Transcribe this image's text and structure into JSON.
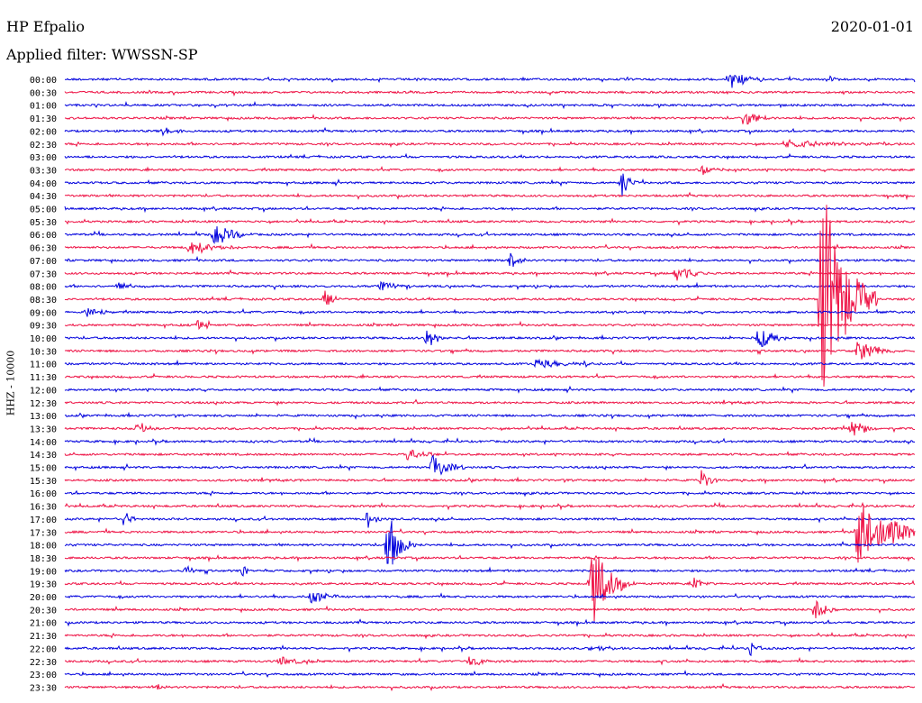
{
  "header": {
    "station": "HP Efpalio",
    "date": "2020-01-01",
    "filter": "Applied filter: WWSSN-SP"
  },
  "chart_data": {
    "type": "line",
    "ylabel": "HHZ - 10000",
    "colors": {
      "even": "#0000dd",
      "odd": "#ee1144"
    },
    "rows": [
      "00:00",
      "00:30",
      "01:00",
      "01:30",
      "02:00",
      "02:30",
      "03:00",
      "03:30",
      "04:00",
      "04:30",
      "05:00",
      "05:30",
      "06:00",
      "06:30",
      "07:00",
      "07:30",
      "08:00",
      "08:30",
      "09:00",
      "09:30",
      "10:00",
      "10:30",
      "11:00",
      "11:30",
      "12:00",
      "12:30",
      "13:00",
      "13:30",
      "14:00",
      "14:30",
      "15:00",
      "15:30",
      "16:00",
      "16:30",
      "17:00",
      "17:30",
      "18:00",
      "18:30",
      "19:00",
      "19:30",
      "20:00",
      "20:30",
      "21:00",
      "21:30",
      "22:00",
      "22:30",
      "23:00",
      "23:30"
    ],
    "events": [
      {
        "row": "00:00",
        "minute": 23.5,
        "amp": 10,
        "dur": 1.5
      },
      {
        "row": "00:00",
        "minute": 27,
        "amp": 5,
        "dur": 0.5
      },
      {
        "row": "01:30",
        "minute": 24,
        "amp": 12,
        "dur": 1.2
      },
      {
        "row": "02:00",
        "minute": 3.5,
        "amp": 5,
        "dur": 1
      },
      {
        "row": "02:30",
        "minute": 25.5,
        "amp": 4,
        "dur": 5
      },
      {
        "row": "03:30",
        "minute": 22.5,
        "amp": 7,
        "dur": 1
      },
      {
        "row": "04:00",
        "minute": 19.7,
        "amp": 18,
        "dur": 0.6
      },
      {
        "row": "06:00",
        "minute": 5.3,
        "amp": 16,
        "dur": 1.4
      },
      {
        "row": "06:30",
        "minute": 4.4,
        "amp": 9,
        "dur": 2
      },
      {
        "row": "07:00",
        "minute": 15.7,
        "amp": 12,
        "dur": 0.8
      },
      {
        "row": "07:30",
        "minute": 21.6,
        "amp": 10,
        "dur": 1.5
      },
      {
        "row": "08:00",
        "minute": 1.9,
        "amp": 8,
        "dur": 0.6
      },
      {
        "row": "08:00",
        "minute": 11.2,
        "amp": 8,
        "dur": 1
      },
      {
        "row": "08:30",
        "minute": 9.2,
        "amp": 12,
        "dur": 0.8
      },
      {
        "row": "08:30",
        "minute": 26.7,
        "amp": 140,
        "dur": 2
      },
      {
        "row": "09:00",
        "minute": 0.8,
        "amp": 6,
        "dur": 1
      },
      {
        "row": "09:30",
        "minute": 4.7,
        "amp": 8,
        "dur": 0.6
      },
      {
        "row": "10:00",
        "minute": 12.8,
        "amp": 12,
        "dur": 0.8
      },
      {
        "row": "10:00",
        "minute": 24.5,
        "amp": 14,
        "dur": 1.2
      },
      {
        "row": "10:30",
        "minute": 28,
        "amp": 14,
        "dur": 1.5
      },
      {
        "row": "11:00",
        "minute": 16.6,
        "amp": 5,
        "dur": 2.5
      },
      {
        "row": "13:30",
        "minute": 2.6,
        "amp": 10,
        "dur": 0.6
      },
      {
        "row": "13:30",
        "minute": 27.8,
        "amp": 12,
        "dur": 1
      },
      {
        "row": "14:30",
        "minute": 12.1,
        "amp": 8,
        "dur": 1.5
      },
      {
        "row": "15:00",
        "minute": 13,
        "amp": 18,
        "dur": 1.2
      },
      {
        "row": "15:30",
        "minute": 22.5,
        "amp": 16,
        "dur": 0.6
      },
      {
        "row": "17:00",
        "minute": 2.1,
        "amp": 8,
        "dur": 0.8
      },
      {
        "row": "17:00",
        "minute": 10.7,
        "amp": 9,
        "dur": 0.8
      },
      {
        "row": "17:30",
        "minute": 28,
        "amp": 40,
        "dur": 3
      },
      {
        "row": "18:00",
        "minute": 11.4,
        "amp": 40,
        "dur": 1
      },
      {
        "row": "19:00",
        "minute": 4.3,
        "amp": 7,
        "dur": 0.5
      },
      {
        "row": "19:00",
        "minute": 6.3,
        "amp": 7,
        "dur": 0.5
      },
      {
        "row": "19:30",
        "minute": 18.6,
        "amp": 50,
        "dur": 1.5
      },
      {
        "row": "19:30",
        "minute": 22.2,
        "amp": 8,
        "dur": 0.6
      },
      {
        "row": "20:00",
        "minute": 8.7,
        "amp": 8,
        "dur": 1.5
      },
      {
        "row": "20:30",
        "minute": 26.5,
        "amp": 16,
        "dur": 0.8
      },
      {
        "row": "22:00",
        "minute": 18.6,
        "amp": 3,
        "dur": 2
      },
      {
        "row": "22:00",
        "minute": 24.2,
        "amp": 8,
        "dur": 0.6
      },
      {
        "row": "22:30",
        "minute": 7.6,
        "amp": 6,
        "dur": 1.4
      },
      {
        "row": "22:30",
        "minute": 14.3,
        "amp": 6,
        "dur": 1.4
      },
      {
        "row": "23:30",
        "minute": 3.3,
        "amp": 4,
        "dur": 0.5
      }
    ]
  }
}
